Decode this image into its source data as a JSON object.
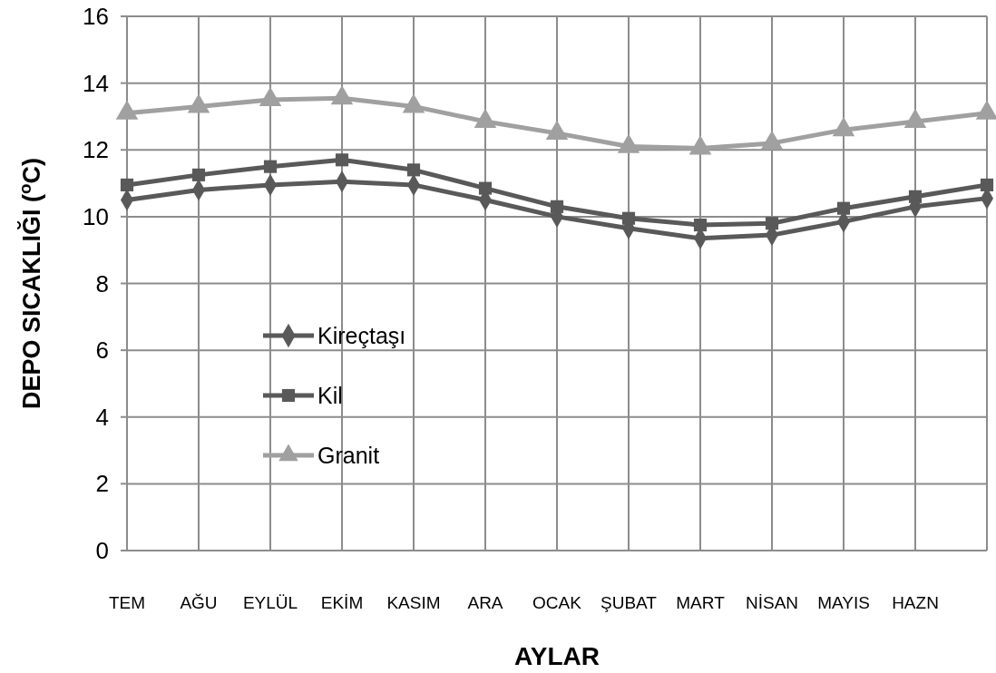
{
  "chart_data": {
    "type": "line",
    "xlabel": "AYLAR",
    "ylabel": "DEPO SICAKLIĞI ($^{o}$C)",
    "categories": [
      "TEM",
      "AĞU",
      "EYLÜL",
      "EKİM",
      "KASIM",
      "ARA",
      "OCAK",
      "ŞUBAT",
      "MART",
      "NİSAN",
      "MAYIS",
      "HAZN",
      null
    ],
    "ylim": [
      0,
      16
    ],
    "yticks": [
      0,
      2,
      4,
      6,
      8,
      10,
      12,
      14,
      16
    ],
    "grid": true,
    "legend": "left",
    "line_style": "solid",
    "series": [
      {
        "name": "Kireçtaşı",
        "color": "#595959",
        "marker": "diamond",
        "values": [
          10.5,
          10.8,
          10.95,
          11.05,
          10.95,
          10.5,
          10.0,
          9.65,
          9.35,
          9.45,
          9.85,
          10.3,
          10.55
        ]
      },
      {
        "name": "Kil",
        "color": "#595959",
        "marker": "square",
        "values": [
          10.95,
          11.25,
          11.5,
          11.7,
          11.4,
          10.85,
          10.3,
          9.95,
          9.75,
          9.8,
          10.25,
          10.6,
          10.95
        ]
      },
      {
        "name": "Granit",
        "color": "#a0a0a0",
        "marker": "triangle",
        "values": [
          13.1,
          13.3,
          13.5,
          13.55,
          13.3,
          12.85,
          12.5,
          12.1,
          12.05,
          12.2,
          12.6,
          12.85,
          13.1
        ]
      }
    ]
  }
}
